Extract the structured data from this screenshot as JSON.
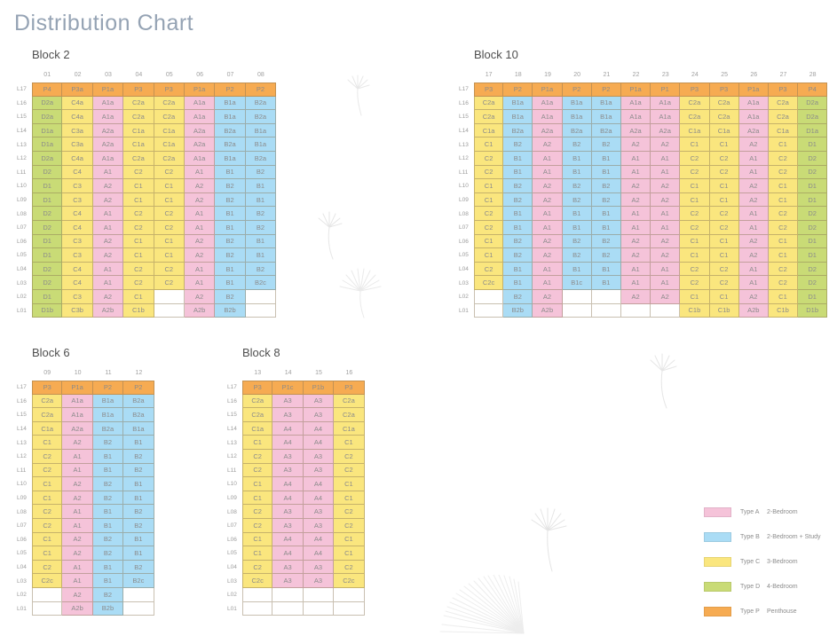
{
  "title": "Distribution Chart",
  "decoration": "dandelion-seeds",
  "type_colors": {
    "A": "#f5c3d9",
    "B": "#aadcf5",
    "C": "#fae67e",
    "D": "#c9db76",
    "P": "#f6ab52"
  },
  "levels": [
    "L17",
    "L16",
    "L15",
    "L14",
    "L13",
    "L12",
    "L11",
    "L10",
    "L09",
    "L08",
    "L07",
    "L06",
    "L05",
    "L04",
    "L03",
    "L02",
    "L01"
  ],
  "legend": {
    "items": [
      {
        "type": "Type A",
        "desc": "2-Bedroom",
        "color": "#f5c3d9"
      },
      {
        "type": "Type B",
        "desc": "2-Bedroom + Study",
        "color": "#aadcf5"
      },
      {
        "type": "Type C",
        "desc": "3-Bedroom",
        "color": "#fae67e"
      },
      {
        "type": "Type D",
        "desc": "4-Bedroom",
        "color": "#c9db76"
      },
      {
        "type": "Type P",
        "desc": "Penthouse",
        "color": "#f6ab52"
      }
    ]
  },
  "chart_data": [
    {
      "type": "table",
      "title": "Block 2",
      "columns": [
        "01",
        "02",
        "03",
        "04",
        "05",
        "06",
        "07",
        "08"
      ],
      "rows": [
        [
          "P4",
          "P3a",
          "P1a",
          "P3",
          "P3",
          "P1a",
          "P2",
          "P2"
        ],
        [
          "D2a",
          "C4a",
          "A1a",
          "C2a",
          "C2a",
          "A1a",
          "B1a",
          "B2a"
        ],
        [
          "D2a",
          "C4a",
          "A1a",
          "C2a",
          "C2a",
          "A1a",
          "B1a",
          "B2a"
        ],
        [
          "D1a",
          "C3a",
          "A2a",
          "C1a",
          "C1a",
          "A2a",
          "B2a",
          "B1a"
        ],
        [
          "D1a",
          "C3a",
          "A2a",
          "C1a",
          "C1a",
          "A2a",
          "B2a",
          "B1a"
        ],
        [
          "D2a",
          "C4a",
          "A1a",
          "C2a",
          "C2a",
          "A1a",
          "B1a",
          "B2a"
        ],
        [
          "D2",
          "C4",
          "A1",
          "C2",
          "C2",
          "A1",
          "B1",
          "B2"
        ],
        [
          "D1",
          "C3",
          "A2",
          "C1",
          "C1",
          "A2",
          "B2",
          "B1"
        ],
        [
          "D1",
          "C3",
          "A2",
          "C1",
          "C1",
          "A2",
          "B2",
          "B1"
        ],
        [
          "D2",
          "C4",
          "A1",
          "C2",
          "C2",
          "A1",
          "B1",
          "B2"
        ],
        [
          "D2",
          "C4",
          "A1",
          "C2",
          "C2",
          "A1",
          "B1",
          "B2"
        ],
        [
          "D1",
          "C3",
          "A2",
          "C1",
          "C1",
          "A2",
          "B2",
          "B1"
        ],
        [
          "D1",
          "C3",
          "A2",
          "C1",
          "C1",
          "A2",
          "B2",
          "B1"
        ],
        [
          "D2",
          "C4",
          "A1",
          "C2",
          "C2",
          "A1",
          "B1",
          "B2"
        ],
        [
          "D2",
          "C4",
          "A1",
          "C2",
          "C2",
          "A1",
          "B1",
          "B2c"
        ],
        [
          "D1",
          "C3",
          "A2",
          "C1",
          "",
          "A2",
          "B2",
          ""
        ],
        [
          "D1b",
          "C3b",
          "A2b",
          "C1b",
          "",
          "A2b",
          "B2b",
          ""
        ]
      ]
    },
    {
      "type": "table",
      "title": "Block 10",
      "columns": [
        "17",
        "18",
        "19",
        "20",
        "21",
        "22",
        "23",
        "24",
        "25",
        "26",
        "27",
        "28"
      ],
      "rows": [
        [
          "P3",
          "P2",
          "P1a",
          "P2",
          "P2",
          "P1a",
          "P1",
          "P3",
          "P3",
          "P1a",
          "P3",
          "P4"
        ],
        [
          "C2a",
          "B1a",
          "A1a",
          "B1a",
          "B1a",
          "A1a",
          "A1a",
          "C2a",
          "C2a",
          "A1a",
          "C2a",
          "D2a"
        ],
        [
          "C2a",
          "B1a",
          "A1a",
          "B1a",
          "B1a",
          "A1a",
          "A1a",
          "C2a",
          "C2a",
          "A1a",
          "C2a",
          "D2a"
        ],
        [
          "C1a",
          "B2a",
          "A2a",
          "B2a",
          "B2a",
          "A2a",
          "A2a",
          "C1a",
          "C1a",
          "A2a",
          "C1a",
          "D1a"
        ],
        [
          "C1",
          "B2",
          "A2",
          "B2",
          "B2",
          "A2",
          "A2",
          "C1",
          "C1",
          "A2",
          "C1",
          "D1"
        ],
        [
          "C2",
          "B1",
          "A1",
          "B1",
          "B1",
          "A1",
          "A1",
          "C2",
          "C2",
          "A1",
          "C2",
          "D2"
        ],
        [
          "C2",
          "B1",
          "A1",
          "B1",
          "B1",
          "A1",
          "A1",
          "C2",
          "C2",
          "A1",
          "C2",
          "D2"
        ],
        [
          "C1",
          "B2",
          "A2",
          "B2",
          "B2",
          "A2",
          "A2",
          "C1",
          "C1",
          "A2",
          "C1",
          "D1"
        ],
        [
          "C1",
          "B2",
          "A2",
          "B2",
          "B2",
          "A2",
          "A2",
          "C1",
          "C1",
          "A2",
          "C1",
          "D1"
        ],
        [
          "C2",
          "B1",
          "A1",
          "B1",
          "B1",
          "A1",
          "A1",
          "C2",
          "C2",
          "A1",
          "C2",
          "D2"
        ],
        [
          "C2",
          "B1",
          "A1",
          "B1",
          "B1",
          "A1",
          "A1",
          "C2",
          "C2",
          "A1",
          "C2",
          "D2"
        ],
        [
          "C1",
          "B2",
          "A2",
          "B2",
          "B2",
          "A2",
          "A2",
          "C1",
          "C1",
          "A2",
          "C1",
          "D1"
        ],
        [
          "C1",
          "B2",
          "A2",
          "B2",
          "B2",
          "A2",
          "A2",
          "C1",
          "C1",
          "A2",
          "C1",
          "D1"
        ],
        [
          "C2",
          "B1",
          "A1",
          "B1",
          "B1",
          "A1",
          "A1",
          "C2",
          "C2",
          "A1",
          "C2",
          "D2"
        ],
        [
          "C2c",
          "B1",
          "A1",
          "B1c",
          "B1",
          "A1",
          "A1",
          "C2",
          "C2",
          "A1",
          "C2",
          "D2"
        ],
        [
          "",
          "B2",
          "A2",
          "",
          "",
          "A2",
          "A2",
          "C1",
          "C1",
          "A2",
          "C1",
          "D1"
        ],
        [
          "",
          "B2b",
          "A2b",
          "",
          "",
          "",
          "",
          "C1b",
          "C1b",
          "A2b",
          "C1b",
          "D1b"
        ]
      ]
    },
    {
      "type": "table",
      "title": "Block 6",
      "columns": [
        "09",
        "10",
        "11",
        "12"
      ],
      "rows": [
        [
          "P3",
          "P1a",
          "P2",
          "P2"
        ],
        [
          "C2a",
          "A1a",
          "B1a",
          "B2a"
        ],
        [
          "C2a",
          "A1a",
          "B1a",
          "B2a"
        ],
        [
          "C1a",
          "A2a",
          "B2a",
          "B1a"
        ],
        [
          "C1",
          "A2",
          "B2",
          "B1"
        ],
        [
          "C2",
          "A1",
          "B1",
          "B2"
        ],
        [
          "C2",
          "A1",
          "B1",
          "B2"
        ],
        [
          "C1",
          "A2",
          "B2",
          "B1"
        ],
        [
          "C1",
          "A2",
          "B2",
          "B1"
        ],
        [
          "C2",
          "A1",
          "B1",
          "B2"
        ],
        [
          "C2",
          "A1",
          "B1",
          "B2"
        ],
        [
          "C1",
          "A2",
          "B2",
          "B1"
        ],
        [
          "C1",
          "A2",
          "B2",
          "B1"
        ],
        [
          "C2",
          "A1",
          "B1",
          "B2"
        ],
        [
          "C2c",
          "A1",
          "B1",
          "B2c"
        ],
        [
          "",
          "A2",
          "B2",
          ""
        ],
        [
          "",
          "A2b",
          "B2b",
          ""
        ]
      ]
    },
    {
      "type": "table",
      "title": "Block 8",
      "columns": [
        "13",
        "14",
        "15",
        "16"
      ],
      "rows": [
        [
          "P3",
          "P1c",
          "P1b",
          "P3"
        ],
        [
          "C2a",
          "A3",
          "A3",
          "C2a"
        ],
        [
          "C2a",
          "A3",
          "A3",
          "C2a"
        ],
        [
          "C1a",
          "A4",
          "A4",
          "C1a"
        ],
        [
          "C1",
          "A4",
          "A4",
          "C1"
        ],
        [
          "C2",
          "A3",
          "A3",
          "C2"
        ],
        [
          "C2",
          "A3",
          "A3",
          "C2"
        ],
        [
          "C1",
          "A4",
          "A4",
          "C1"
        ],
        [
          "C1",
          "A4",
          "A4",
          "C1"
        ],
        [
          "C2",
          "A3",
          "A3",
          "C2"
        ],
        [
          "C2",
          "A3",
          "A3",
          "C2"
        ],
        [
          "C1",
          "A4",
          "A4",
          "C1"
        ],
        [
          "C1",
          "A4",
          "A4",
          "C1"
        ],
        [
          "C2",
          "A3",
          "A3",
          "C2"
        ],
        [
          "C2c",
          "A3",
          "A3",
          "C2c"
        ],
        [
          "",
          "",
          "",
          ""
        ],
        [
          "",
          "",
          "",
          ""
        ]
      ]
    }
  ]
}
